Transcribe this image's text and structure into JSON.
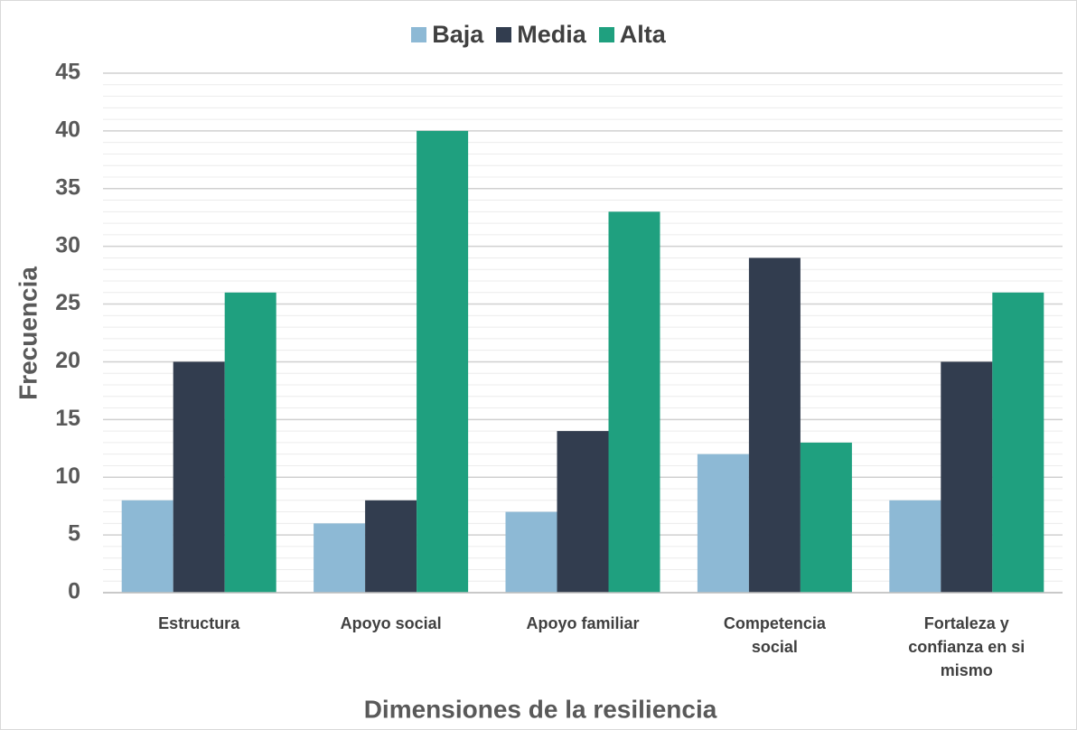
{
  "chart_data": {
    "type": "bar",
    "x_label": "Dimensiones de la resiliencia",
    "y_label": "Frecuencia",
    "categories": [
      "Estructura",
      "Apoyo social",
      "Apoyo familiar",
      "Competencia social",
      "Fortaleza y confianza en si mismo"
    ],
    "series": [
      {
        "name": "Baja",
        "color": "#8db9d5",
        "values": [
          8,
          6,
          7,
          12,
          8
        ]
      },
      {
        "name": "Media",
        "color": "#323d4f",
        "values": [
          20,
          8,
          14,
          29,
          20
        ]
      },
      {
        "name": "Alta",
        "color": "#1fa07f",
        "values": [
          26,
          40,
          33,
          13,
          26
        ]
      }
    ],
    "ylim": [
      0,
      45
    ],
    "yticks": [
      0,
      5,
      10,
      15,
      20,
      25,
      30,
      35,
      40,
      45
    ],
    "grid": true,
    "minor_grid": true,
    "legend": "top"
  }
}
